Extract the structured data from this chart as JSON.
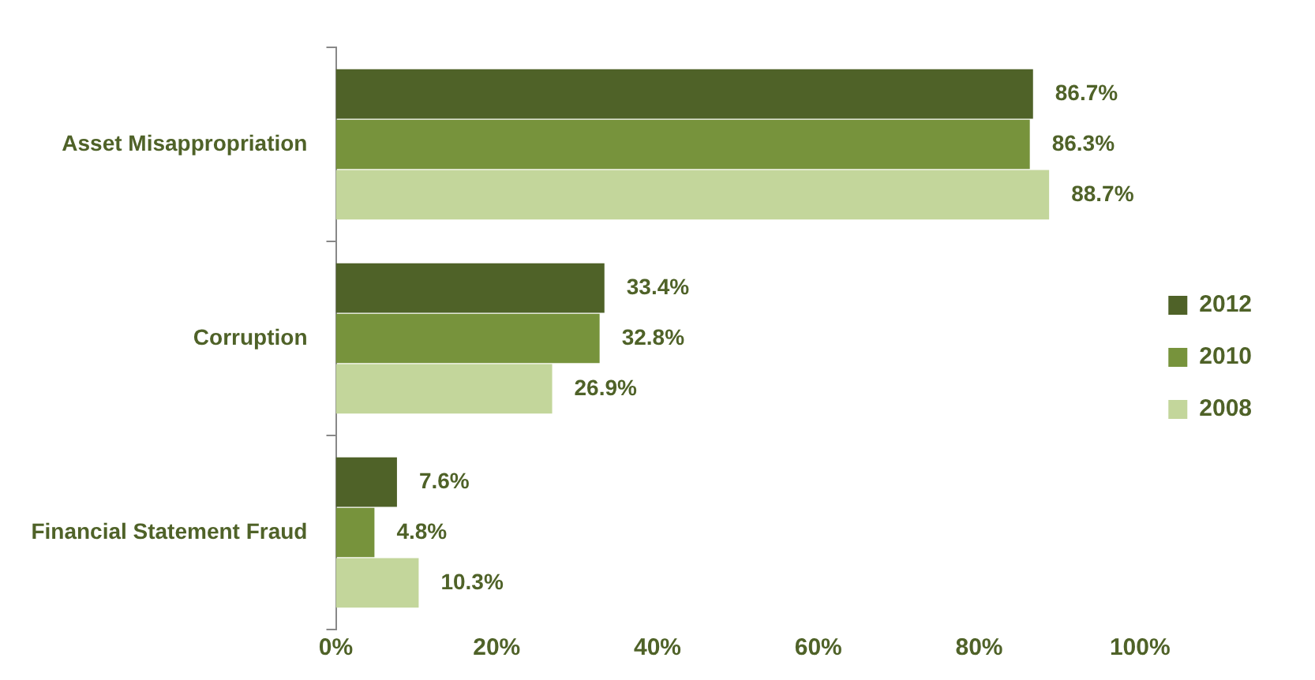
{
  "chart_data": {
    "type": "bar",
    "orientation": "horizontal",
    "categories": [
      "Asset Misappropriation",
      "Corruption",
      "Financial Statement Fraud"
    ],
    "series": [
      {
        "name": "2012",
        "color": "#4f6228",
        "values": [
          86.7,
          33.4,
          7.6
        ],
        "value_labels": [
          "86.7%",
          "33.4%",
          "7.6%"
        ]
      },
      {
        "name": "2010",
        "color": "#77933c",
        "values": [
          86.3,
          32.8,
          4.8
        ],
        "value_labels": [
          "86.3%",
          "32.8%",
          "4.8%"
        ]
      },
      {
        "name": "2008",
        "color": "#c3d69b",
        "values": [
          88.7,
          26.9,
          10.3
        ],
        "value_labels": [
          "88.7%",
          "26.9%",
          "10.3%"
        ]
      }
    ],
    "xlim": [
      0,
      100
    ],
    "xticks": [
      {
        "value": 0,
        "label": "0%"
      },
      {
        "value": 20,
        "label": "20%"
      },
      {
        "value": 40,
        "label": "40%"
      },
      {
        "value": 60,
        "label": "60%"
      },
      {
        "value": 80,
        "label": "80%"
      },
      {
        "value": 100,
        "label": "100%"
      }
    ],
    "grid": false,
    "legend": "right"
  }
}
